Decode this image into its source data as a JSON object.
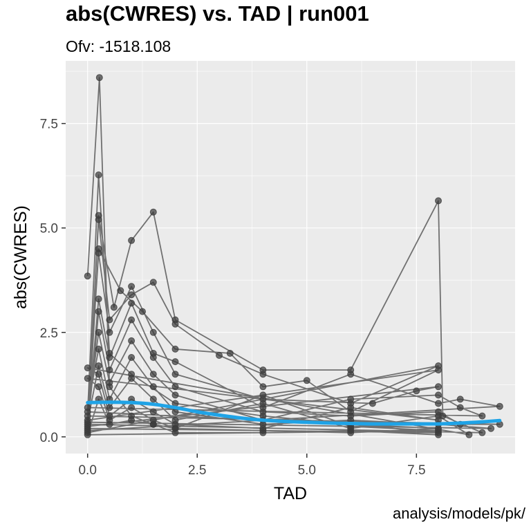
{
  "chart_data": {
    "type": "scatter",
    "title": "abs(CWRES) vs. TAD  | run001",
    "subtitle": "Ofv: -1518.108",
    "caption": "analysis/models/pk/",
    "xlabel": "TAD",
    "ylabel": "abs(CWRES)",
    "xlim": [
      -0.5,
      9.75
    ],
    "ylim": [
      -0.4,
      9.0
    ],
    "x_ticks": [
      0.0,
      2.5,
      5.0,
      7.5
    ],
    "x_tick_labels": [
      "0.0",
      "2.5",
      "5.0",
      "7.5"
    ],
    "y_ticks": [
      0.0,
      2.5,
      5.0,
      7.5
    ],
    "y_tick_labels": [
      "0.0",
      "2.5",
      "5.0",
      "7.5"
    ],
    "grid": true,
    "colors": {
      "panel": "#ebebeb",
      "grid": "#ffffff",
      "points": "#3c3c3c",
      "smooth": "#1fa3e6"
    },
    "series": [
      {
        "type": "points-connected",
        "points": [
          [
            0,
            3.85
          ],
          [
            0.27,
            8.6
          ],
          [
            0.5,
            1.2
          ],
          [
            1.0,
            0.5
          ],
          [
            1.5,
            0.3
          ],
          [
            2.0,
            0.2
          ],
          [
            4.0,
            0.15
          ],
          [
            6.0,
            0.1
          ],
          [
            8.0,
            0.2
          ],
          [
            0,
            0.6
          ],
          [
            0.25,
            6.27
          ],
          [
            0.5,
            2.0
          ],
          [
            1.0,
            1.5
          ],
          [
            2.0,
            0.8
          ],
          [
            4.0,
            0.5
          ],
          [
            6.0,
            0.3
          ],
          [
            8.0,
            0.1
          ],
          [
            0,
            0.2
          ],
          [
            0.25,
            5.3
          ],
          [
            0.6,
            3.1
          ],
          [
            1.0,
            4.7
          ],
          [
            1.5,
            5.38
          ],
          [
            2.0,
            2.8
          ],
          [
            4.0,
            1.6
          ],
          [
            6.0,
            1.6
          ],
          [
            8.0,
            5.65
          ],
          [
            8.1,
            0.5
          ],
          [
            9.0,
            0.1
          ],
          [
            0,
            0.3
          ],
          [
            0.25,
            5.2
          ],
          [
            0.5,
            2.8
          ],
          [
            1.0,
            3.4
          ],
          [
            1.5,
            3.7
          ],
          [
            2.0,
            2.7
          ],
          [
            3.0,
            1.95
          ],
          [
            4.0,
            1.5
          ],
          [
            6.0,
            0.8
          ],
          [
            8.0,
            1.7
          ],
          [
            0,
            0.1
          ],
          [
            0.25,
            4.5
          ],
          [
            0.75,
            3.5
          ],
          [
            1.25,
            3.0
          ],
          [
            2.0,
            2.1
          ],
          [
            3.25,
            2.0
          ],
          [
            4.0,
            1.2
          ],
          [
            5.0,
            1.35
          ],
          [
            6.0,
            0.6
          ],
          [
            8.0,
            1.6
          ],
          [
            0,
            0.4
          ],
          [
            0.25,
            4.4
          ],
          [
            0.5,
            2.5
          ],
          [
            1.0,
            3.6
          ],
          [
            1.5,
            2.5
          ],
          [
            2.0,
            1.5
          ],
          [
            4.0,
            0.9
          ],
          [
            6.5,
            0.8
          ],
          [
            7.5,
            1.1
          ],
          [
            8.0,
            1.2
          ],
          [
            0,
            0.25
          ],
          [
            0.25,
            3.3
          ],
          [
            0.5,
            1.9
          ],
          [
            1.0,
            3.2
          ],
          [
            1.5,
            2.0
          ],
          [
            2.0,
            1.8
          ],
          [
            4.0,
            0.7
          ],
          [
            6.0,
            1.5
          ],
          [
            8.0,
            0.8
          ],
          [
            8.5,
            0.9
          ],
          [
            9.4,
            0.73
          ],
          [
            0,
            0.15
          ],
          [
            0.25,
            3.0
          ],
          [
            0.5,
            1.6
          ],
          [
            1.0,
            2.8
          ],
          [
            1.5,
            1.9
          ],
          [
            2.0,
            1.2
          ],
          [
            4.0,
            0.6
          ],
          [
            6.0,
            0.5
          ],
          [
            8.0,
            0.6
          ],
          [
            8.5,
            0.3
          ],
          [
            9.4,
            0.3
          ],
          [
            0,
            0.5
          ],
          [
            0.25,
            2.5
          ],
          [
            0.5,
            1.3
          ],
          [
            1.0,
            2.3
          ],
          [
            1.5,
            1.5
          ],
          [
            2.0,
            1.0
          ],
          [
            4.0,
            0.4
          ],
          [
            6.0,
            0.9
          ],
          [
            8.0,
            1.0
          ],
          [
            8.5,
            0.7
          ],
          [
            9.0,
            0.5
          ],
          [
            0,
            0.7
          ],
          [
            0.25,
            2.1
          ],
          [
            0.5,
            0.9
          ],
          [
            1.0,
            1.9
          ],
          [
            1.5,
            1.2
          ],
          [
            2.0,
            0.6
          ],
          [
            4.0,
            0.3
          ],
          [
            6.0,
            0.4
          ],
          [
            8.0,
            0.3
          ],
          [
            9.2,
            0.2
          ],
          [
            0,
            0.35
          ],
          [
            0.25,
            1.7
          ],
          [
            0.5,
            0.7
          ],
          [
            1.0,
            1.4
          ],
          [
            1.5,
            0.9
          ],
          [
            2.0,
            0.4
          ],
          [
            4.0,
            0.8
          ],
          [
            6.0,
            0.2
          ],
          [
            8.0,
            0.5
          ],
          [
            8.7,
            0.05
          ],
          [
            0,
            1.65
          ],
          [
            0.25,
            1.5
          ],
          [
            0.5,
            0.5
          ],
          [
            1.0,
            0.9
          ],
          [
            1.5,
            0.6
          ],
          [
            2.0,
            0.3
          ],
          [
            4.0,
            0.2
          ],
          [
            6.0,
            0.7
          ],
          [
            8.0,
            0.4
          ],
          [
            0,
            1.4
          ],
          [
            0.25,
            1.2
          ],
          [
            0.5,
            0.4
          ],
          [
            1.0,
            0.7
          ],
          [
            1.5,
            0.4
          ],
          [
            2.0,
            0.2
          ],
          [
            4.0,
            1.0
          ],
          [
            6.0,
            0.25
          ],
          [
            8.0,
            0.15
          ],
          [
            0,
            0.05
          ],
          [
            0.25,
            0.9
          ],
          [
            0.5,
            0.3
          ],
          [
            1.0,
            0.4
          ],
          [
            1.5,
            0.3
          ],
          [
            2.0,
            0.1
          ],
          [
            4.0,
            0.1
          ],
          [
            6.0,
            0.15
          ],
          [
            8.0,
            0.05
          ]
        ]
      },
      {
        "type": "smooth",
        "x": [
          0.0,
          0.5,
          1.0,
          1.5,
          2.0,
          2.5,
          3.0,
          3.5,
          4.0,
          4.5,
          5.0,
          5.5,
          6.0,
          6.5,
          7.0,
          7.5,
          8.0,
          8.5,
          9.0,
          9.4
        ],
        "y": [
          0.82,
          0.83,
          0.82,
          0.78,
          0.7,
          0.6,
          0.52,
          0.45,
          0.4,
          0.37,
          0.35,
          0.33,
          0.32,
          0.31,
          0.31,
          0.31,
          0.31,
          0.33,
          0.36,
          0.39
        ]
      }
    ]
  }
}
